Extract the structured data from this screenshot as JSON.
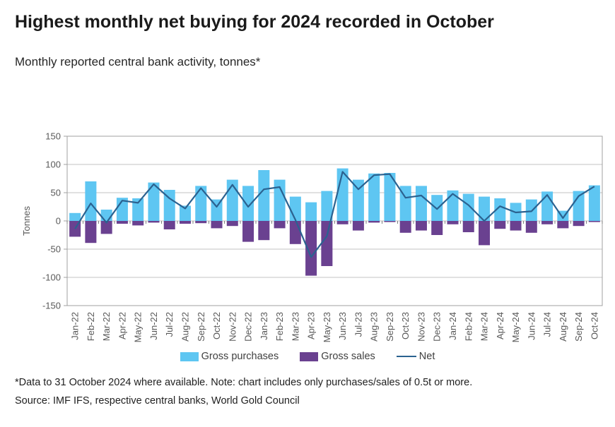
{
  "header": {
    "title": "Highest monthly net buying for 2024 recorded in October",
    "subtitle": "Monthly reported central bank activity, tonnes*"
  },
  "chart_data": {
    "type": "bar",
    "title": "Highest monthly net buying for 2024 recorded in October",
    "subtitle": "Monthly reported central bank activity, tonnes*",
    "xlabel": "",
    "ylabel": "Tonnes",
    "ylim": [
      -150,
      150
    ],
    "yticks": [
      150,
      100,
      50,
      0,
      -50,
      -100,
      -150
    ],
    "grid": true,
    "legend_position": "bottom",
    "categories": [
      "Jan-22",
      "Feb-22",
      "Mar-22",
      "Apr-22",
      "May-22",
      "Jun-22",
      "Jul-22",
      "Aug-22",
      "Sep-22",
      "Oct-22",
      "Nov-22",
      "Dec-22",
      "Jan-23",
      "Feb-23",
      "Mar-23",
      "Apr-23",
      "May-23",
      "Jun-23",
      "Jul-23",
      "Aug-23",
      "Sep-23",
      "Oct-23",
      "Nov-23",
      "Dec-23",
      "Jan-24",
      "Feb-24",
      "Mar-24",
      "Apr-24",
      "May-24",
      "Jun-24",
      "Jul-24",
      "Aug-24",
      "Sep-24",
      "Oct-24"
    ],
    "series": [
      {
        "name": "Gross purchases",
        "kind": "bar",
        "color": "#5ec6f2",
        "values": [
          14,
          70,
          20,
          41,
          40,
          68,
          55,
          27,
          62,
          38,
          73,
          62,
          90,
          73,
          43,
          33,
          53,
          93,
          73,
          84,
          85,
          62,
          62,
          46,
          54,
          48,
          43,
          40,
          32,
          38,
          52,
          18,
          53,
          63
        ]
      },
      {
        "name": "Gross sales",
        "kind": "bar",
        "color": "#6a4190",
        "values": [
          -28,
          -39,
          -23,
          -5,
          -8,
          -3,
          -15,
          -5,
          -4,
          -13,
          -9,
          -37,
          -34,
          -13,
          -41,
          -97,
          -80,
          -6,
          -17,
          -3,
          -2,
          -21,
          -17,
          -25,
          -6,
          -20,
          -43,
          -14,
          -17,
          -21,
          -6,
          -13,
          -9,
          -2
        ]
      },
      {
        "name": "Net",
        "kind": "line",
        "color": "#2b6290",
        "values": [
          -14,
          31,
          -3,
          36,
          32,
          65,
          40,
          22,
          58,
          25,
          64,
          25,
          56,
          60,
          2,
          -64,
          -27,
          87,
          56,
          81,
          83,
          41,
          45,
          21,
          48,
          28,
          0,
          26,
          15,
          17,
          46,
          5,
          44,
          61
        ]
      }
    ],
    "colors": {
      "grid": "#c3c3c3",
      "border": "#a0a0a0",
      "tick": "#7f7f7f",
      "axis_text": "#595959"
    }
  },
  "footer": {
    "note": "*Data to 31 October 2024 where available. Note: chart includes only purchases/sales of 0.5t or more.",
    "source": "Source: IMF IFS, respective central banks, World Gold Council"
  }
}
